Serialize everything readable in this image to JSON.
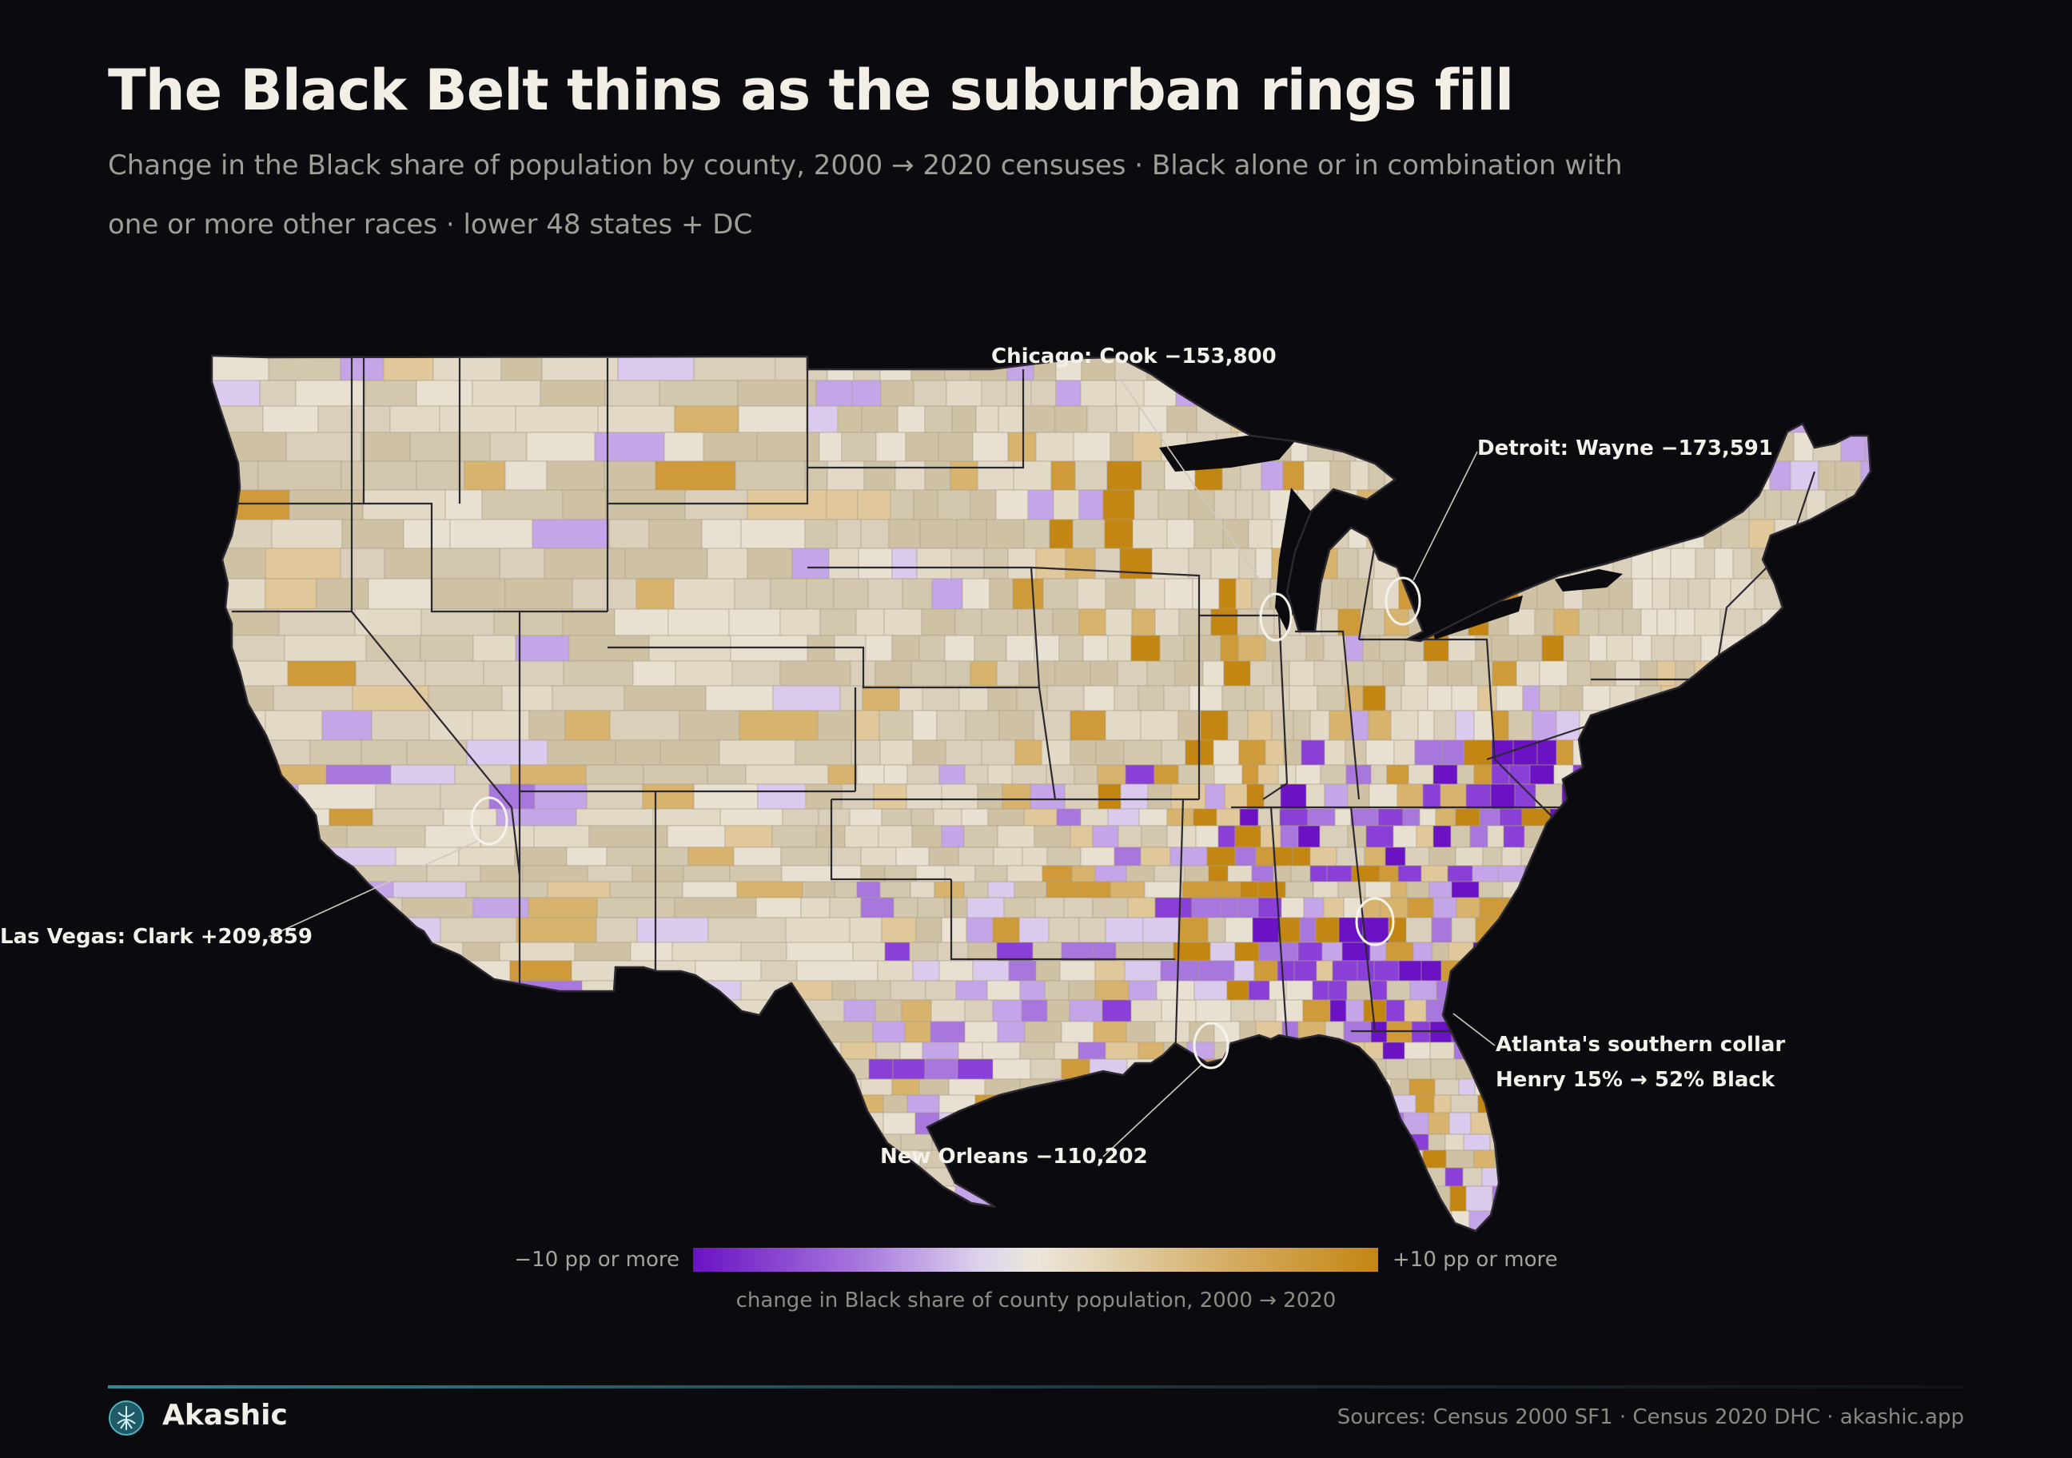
{
  "header": {
    "title": "The Black Belt thins as the suburban rings fill",
    "subtitle": "Change in the Black share of population by county, 2000 → 2020 censuses · Black alone or in combination with one or more other races · lower 48 states + DC"
  },
  "annotations": {
    "chicago": "Chicago: Cook −153,800",
    "detroit": "Detroit: Wayne −173,591",
    "las_vegas": "Las Vegas: Clark +209,859",
    "atlanta_line1": "Atlanta's southern collar",
    "atlanta_line2": "Henry 15% → 52% Black",
    "new_orleans": "New Orleans −110,202"
  },
  "legend": {
    "low_label": "−10 pp or more",
    "high_label": "+10 pp or more",
    "caption": "change in Black share of county population, 2000 → 2020",
    "colors": {
      "strong_decline": "#6a12c4",
      "mild_decline": "#c9b8e8",
      "neutral": "#e4ddd0",
      "mild_gain": "#d7bf8d",
      "strong_gain": "#c48612"
    },
    "range_pp": [
      -10,
      10
    ]
  },
  "footer": {
    "brand": "Akashic",
    "sources": "Sources: Census 2000 SF1 · Census 2020 DHC  ·  akashic.app"
  },
  "colors": {
    "background": "#0b0a0e",
    "land_base": "#ddd3c0",
    "state_border": "#2c2830",
    "accent": "#2f8a96"
  }
}
